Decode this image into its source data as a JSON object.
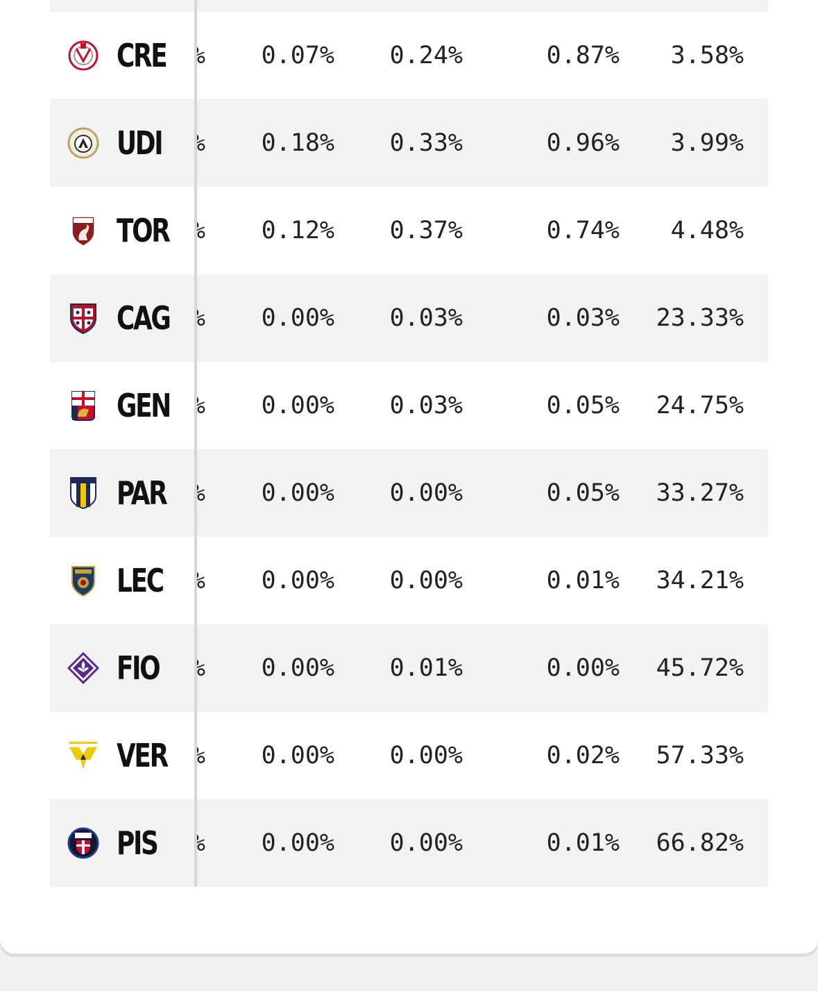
{
  "table": {
    "rows": [
      {
        "team": "CRE",
        "crest": "cremonese-crest-icon",
        "partial": "%",
        "v1": "0.07%",
        "v2": "0.24%",
        "v3": "0.87%",
        "v4": "3.58%"
      },
      {
        "team": "UDI",
        "crest": "udinese-crest-icon",
        "partial": "%",
        "v1": "0.18%",
        "v2": "0.33%",
        "v3": "0.96%",
        "v4": "3.99%"
      },
      {
        "team": "TOR",
        "crest": "torino-crest-icon",
        "partial": "%",
        "v1": "0.12%",
        "v2": "0.37%",
        "v3": "0.74%",
        "v4": "4.48%"
      },
      {
        "team": "CAG",
        "crest": "cagliari-crest-icon",
        "partial": "%",
        "v1": "0.00%",
        "v2": "0.03%",
        "v3": "0.03%",
        "v4": "23.33%"
      },
      {
        "team": "GEN",
        "crest": "genoa-crest-icon",
        "partial": "%",
        "v1": "0.00%",
        "v2": "0.03%",
        "v3": "0.05%",
        "v4": "24.75%"
      },
      {
        "team": "PAR",
        "crest": "parma-crest-icon",
        "partial": "%",
        "v1": "0.00%",
        "v2": "0.00%",
        "v3": "0.05%",
        "v4": "33.27%"
      },
      {
        "team": "LEC",
        "crest": "lecce-crest-icon",
        "partial": "%",
        "v1": "0.00%",
        "v2": "0.00%",
        "v3": "0.01%",
        "v4": "34.21%"
      },
      {
        "team": "FIO",
        "crest": "fiorentina-crest-icon",
        "partial": "%",
        "v1": "0.00%",
        "v2": "0.01%",
        "v3": "0.00%",
        "v4": "45.72%"
      },
      {
        "team": "VER",
        "crest": "verona-crest-icon",
        "partial": "%",
        "v1": "0.00%",
        "v2": "0.00%",
        "v3": "0.02%",
        "v4": "57.33%"
      },
      {
        "team": "PIS",
        "crest": "pisa-crest-icon",
        "partial": "%",
        "v1": "0.00%",
        "v2": "0.00%",
        "v3": "0.01%",
        "v4": "66.82%"
      }
    ]
  },
  "colors": {
    "row_shade": "#f2f2f2",
    "divider": "#d6d6d6",
    "text": "#222222"
  }
}
